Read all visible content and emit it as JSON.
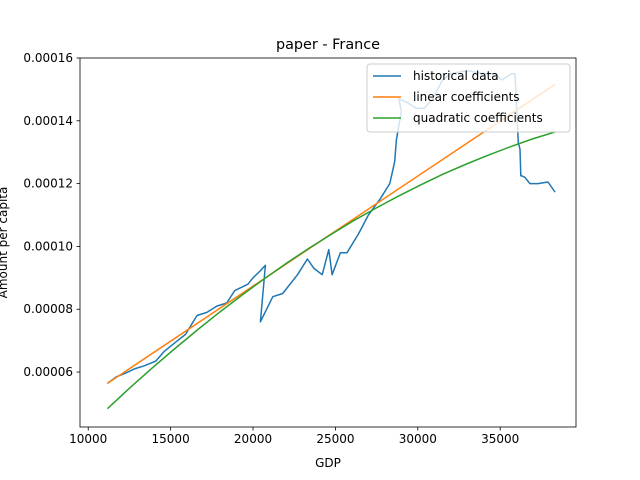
{
  "chart_data": {
    "type": "line",
    "title": "paper - France",
    "xlabel": "GDP",
    "ylabel": "Amount per capita",
    "xlim": [
      9500,
      39600
    ],
    "ylim": [
      4.25e-05,
      0.00016
    ],
    "xticks": [
      10000,
      15000,
      20000,
      25000,
      30000,
      35000
    ],
    "xtick_labels": [
      "10000",
      "15000",
      "20000",
      "25000",
      "30000",
      "35000"
    ],
    "yticks": [
      6e-05,
      8e-05,
      0.0001,
      0.00012,
      0.00014,
      0.00016
    ],
    "ytick_labels": [
      "0.00006",
      "0.00008",
      "0.00010",
      "0.00012",
      "0.00014",
      "0.00016"
    ],
    "legend_position": "top-right",
    "grid": false,
    "colors": {
      "historical": "#1f77b4",
      "linear": "#ff7f0e",
      "quadratic": "#2ca02c"
    },
    "series": [
      {
        "name": "historical data",
        "color": "#1f77b4",
        "x": [
          11200,
          11700,
          12200,
          12800,
          13400,
          14100,
          14600,
          15300,
          15900,
          16600,
          17200,
          17800,
          18400,
          18900,
          19300,
          19700,
          20000,
          20400,
          20750,
          20450,
          21200,
          21800,
          22700,
          23300,
          23700,
          24200,
          24600,
          24800,
          25300,
          25700,
          26400,
          27000,
          27700,
          28300,
          28600,
          28700,
          29000,
          28850,
          29300,
          29900,
          30400,
          30900,
          31500,
          32000,
          33000,
          34000,
          34700,
          35100,
          35700,
          35900,
          36100,
          36200,
          36250,
          36300,
          36500,
          36800,
          37300,
          37900,
          38300
        ],
        "y": [
          5.65e-05,
          5.85e-05,
          5.95e-05,
          6.1e-05,
          6.2e-05,
          6.35e-05,
          6.65e-05,
          6.95e-05,
          7.2e-05,
          7.8e-05,
          7.9e-05,
          8.1e-05,
          8.2e-05,
          8.6e-05,
          8.7e-05,
          8.8e-05,
          9e-05,
          9.2e-05,
          9.4e-05,
          7.6e-05,
          8.4e-05,
          8.5e-05,
          9.1e-05,
          9.6e-05,
          9.3e-05,
          9.1e-05,
          9.9e-05,
          9.1e-05,
          9.8e-05,
          9.8e-05,
          0.000104,
          0.00011,
          0.000115,
          0.00012,
          0.000127,
          0.000134,
          0.000143,
          0.000147,
          0.000146,
          0.000144,
          0.000144,
          0.000147,
          0.000153,
          0.000155,
          0.000156,
          0.000155,
          0.000155,
          0.000153,
          0.000155,
          0.000155,
          0.000133,
          0.000131,
          0.0001225,
          0.0001225,
          0.000122,
          0.00012,
          0.00012,
          0.0001205,
          0.0001175
        ]
      },
      {
        "name": "linear coefficients",
        "color": "#ff7f0e",
        "x": [
          11200,
          38300
        ],
        "y": [
          5.65e-05,
          0.0001515
        ]
      },
      {
        "name": "quadratic coefficients",
        "color": "#2ca02c",
        "x": [
          11200,
          12555,
          13910,
          15265,
          16620,
          17975,
          19330,
          20685,
          22040,
          23395,
          24750,
          26105,
          27460,
          28815,
          30170,
          31525,
          32880,
          34235,
          35590,
          36945,
          38300
        ],
        "y": [
          4.85e-05,
          5.51e-05,
          6.14e-05,
          6.75e-05,
          7.34e-05,
          7.91e-05,
          8.45e-05,
          8.97e-05,
          9.47e-05,
          9.94e-05,
          0.0001039,
          0.0001082,
          0.0001122,
          0.000116,
          0.0001196,
          0.000123,
          0.0001261,
          0.000129,
          0.0001317,
          0.0001342,
          0.0001364
        ]
      }
    ]
  }
}
